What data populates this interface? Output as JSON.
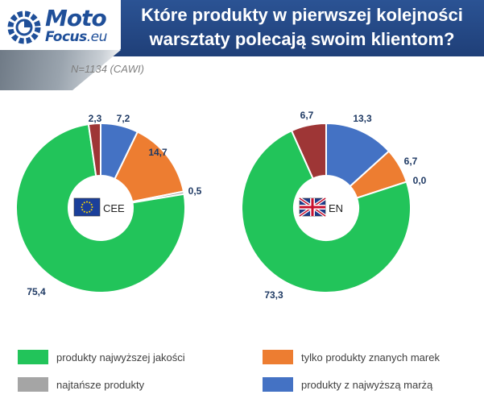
{
  "header": {
    "logo_moto": "Moto",
    "logo_focus": "Focus",
    "logo_eu": ".eu",
    "title_line1": "Które produkty w pierwszej kolejności",
    "title_line2": "warsztaty polecają swoim klientom?",
    "background_color": "#244a8a"
  },
  "subtitle": "N=1134 (CAWI)",
  "legend": [
    {
      "label": "produkty najwyższej jakości",
      "color": "#22c45a"
    },
    {
      "label": "tylko produkty znanych marek",
      "color": "#ed7d31"
    },
    {
      "label": "najtańsze produkty",
      "color": "#a5a5a5"
    },
    {
      "label": "produkty z najwyższą marżą",
      "color": "#4472c4"
    }
  ],
  "chart_data": [
    {
      "type": "pie",
      "center_label": "CEE",
      "flag_icon": "eu-flag-icon",
      "slices": [
        {
          "name": "produkty z najwyższą marżą",
          "value": 7.2,
          "label": "7,2",
          "color": "#4472c4"
        },
        {
          "name": "tylko produkty znanych marek",
          "value": 14.7,
          "label": "14,7",
          "color": "#ed7d31"
        },
        {
          "name": "najtańsze produkty",
          "value": 0.5,
          "label": "0,5",
          "color": "#a5a5a5"
        },
        {
          "name": "produkty najwyższej jakości",
          "value": 75.4,
          "label": "75,4",
          "color": "#22c45a"
        },
        {
          "name": "",
          "value": 2.3,
          "label": "2,3",
          "color": "#9e3636"
        }
      ]
    },
    {
      "type": "pie",
      "center_label": "EN",
      "flag_icon": "uk-flag-icon",
      "slices": [
        {
          "name": "produkty z najwyższą marżą",
          "value": 13.3,
          "label": "13,3",
          "color": "#4472c4"
        },
        {
          "name": "tylko produkty znanych marek",
          "value": 6.7,
          "label": "6,7",
          "color": "#ed7d31"
        },
        {
          "name": "najtańsze produkty",
          "value": 0.0,
          "label": "0,0",
          "color": "#a5a5a5"
        },
        {
          "name": "produkty najwyższej jakości",
          "value": 73.3,
          "label": "73,3",
          "color": "#22c45a"
        },
        {
          "name": "",
          "value": 6.7,
          "label": "6,7",
          "color": "#9e3636"
        }
      ]
    }
  ]
}
